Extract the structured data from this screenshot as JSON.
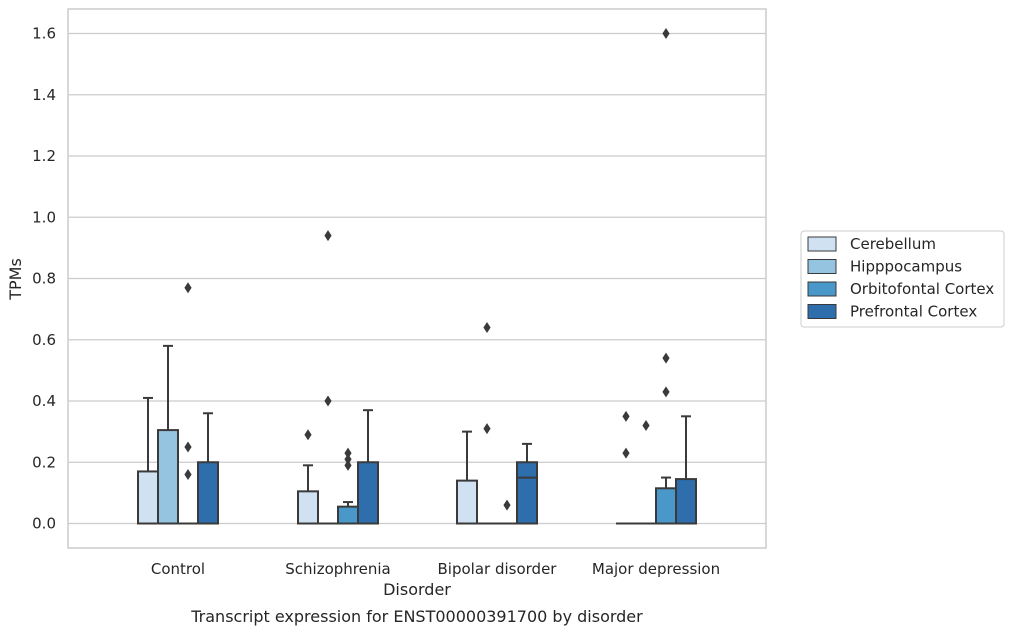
{
  "chart_data": {
    "type": "box",
    "title": "",
    "caption": "Transcript expression for ENST00000391700 by disorder",
    "xlabel": "Disorder",
    "ylabel": "TPMs",
    "ylim": [
      -0.08,
      1.68
    ],
    "yticks": [
      0.0,
      0.2,
      0.4,
      0.6,
      0.8,
      1.0,
      1.2,
      1.4,
      1.6
    ],
    "ytick_labels": [
      "0.0",
      "0.2",
      "0.4",
      "0.6",
      "0.8",
      "1.0",
      "1.2",
      "1.4",
      "1.6"
    ],
    "grid": "horizontal",
    "legend_position": "right",
    "categories": [
      "Control",
      "Schizophrenia",
      "Bipolar disorder",
      "Major depression"
    ],
    "series": [
      {
        "name": "Cerebellum",
        "color": "#d0e1f2",
        "boxes": [
          {
            "q1": 0.0,
            "median": 0.0,
            "q3": 0.17,
            "whisker_low": 0.0,
            "whisker_high": 0.41,
            "outliers": []
          },
          {
            "q1": 0.0,
            "median": 0.0,
            "q3": 0.105,
            "whisker_low": 0.0,
            "whisker_high": 0.19,
            "outliers": [
              0.29
            ]
          },
          {
            "q1": 0.0,
            "median": 0.0,
            "q3": 0.14,
            "whisker_low": 0.0,
            "whisker_high": 0.3,
            "outliers": []
          },
          {
            "q1": 0.0,
            "median": 0.0,
            "q3": 0.0,
            "whisker_low": 0.0,
            "whisker_high": 0.0,
            "outliers": [
              0.23,
              0.35
            ]
          }
        ]
      },
      {
        "name": "Hipppocampus",
        "color": "#94c4df",
        "boxes": [
          {
            "q1": 0.0,
            "median": 0.0,
            "q3": 0.305,
            "whisker_low": 0.0,
            "whisker_high": 0.58,
            "outliers": []
          },
          {
            "q1": 0.0,
            "median": 0.0,
            "q3": 0.0,
            "whisker_low": 0.0,
            "whisker_high": 0.0,
            "outliers": [
              0.4,
              0.94
            ]
          },
          {
            "q1": 0.0,
            "median": 0.0,
            "q3": 0.0,
            "whisker_low": 0.0,
            "whisker_high": 0.0,
            "outliers": [
              0.31,
              0.64
            ]
          },
          {
            "q1": 0.0,
            "median": 0.0,
            "q3": 0.0,
            "whisker_low": 0.0,
            "whisker_high": 0.0,
            "outliers": [
              0.32
            ]
          }
        ]
      },
      {
        "name": "Orbitofontal Cortex",
        "color": "#4a98c9",
        "boxes": [
          {
            "q1": 0.0,
            "median": 0.0,
            "q3": 0.0,
            "whisker_low": 0.0,
            "whisker_high": 0.0,
            "outliers": [
              0.16,
              0.25,
              0.77
            ]
          },
          {
            "q1": 0.0,
            "median": 0.0,
            "q3": 0.055,
            "whisker_low": 0.0,
            "whisker_high": 0.07,
            "outliers": [
              0.19,
              0.21,
              0.23
            ]
          },
          {
            "q1": 0.0,
            "median": 0.0,
            "q3": 0.0,
            "whisker_low": 0.0,
            "whisker_high": 0.0,
            "outliers": [
              0.06
            ]
          },
          {
            "q1": 0.0,
            "median": 0.0,
            "q3": 0.115,
            "whisker_low": 0.0,
            "whisker_high": 0.15,
            "outliers": [
              0.43,
              0.54,
              1.6
            ]
          }
        ]
      },
      {
        "name": "Prefrontal Cortex",
        "color": "#2e6ead",
        "boxes": [
          {
            "q1": 0.0,
            "median": 0.0,
            "q3": 0.2,
            "whisker_low": 0.0,
            "whisker_high": 0.36,
            "outliers": []
          },
          {
            "q1": 0.0,
            "median": 0.0,
            "q3": 0.2,
            "whisker_low": 0.0,
            "whisker_high": 0.37,
            "outliers": []
          },
          {
            "q1": 0.0,
            "median": 0.15,
            "q3": 0.2,
            "whisker_low": 0.0,
            "whisker_high": 0.26,
            "outliers": []
          },
          {
            "q1": 0.0,
            "median": 0.0,
            "q3": 0.145,
            "whisker_low": 0.0,
            "whisker_high": 0.35,
            "outliers": []
          }
        ]
      }
    ]
  }
}
